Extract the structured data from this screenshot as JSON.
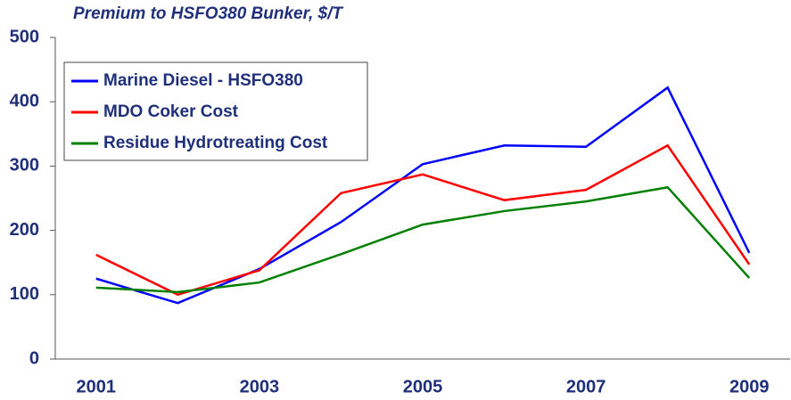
{
  "chart_data": {
    "type": "line",
    "title": "Premium to HSFO380 Bunker, $/T",
    "x": [
      2001,
      2002,
      2003,
      2004,
      2005,
      2006,
      2007,
      2008,
      2009
    ],
    "xlim": [
      2000.5,
      2009.5
    ],
    "xticks": [
      2001,
      2003,
      2005,
      2007,
      2009
    ],
    "ylim": [
      0,
      500
    ],
    "yticks": [
      0,
      100,
      200,
      300,
      400,
      500
    ],
    "legend": "upper-left",
    "grid": false,
    "series": [
      {
        "name": "Marine Diesel - HSFO380",
        "color": "#0000ff",
        "values": [
          125,
          87,
          140,
          213,
          303,
          332,
          330,
          422,
          165
        ]
      },
      {
        "name": "MDO Coker Cost",
        "color": "#ff0000",
        "values": [
          162,
          100,
          138,
          258,
          287,
          247,
          263,
          332,
          147
        ]
      },
      {
        "name": "Residue Hydrotreating Cost",
        "color": "#008000",
        "values": [
          111,
          104,
          119,
          163,
          209,
          230,
          245,
          267,
          126
        ]
      }
    ]
  }
}
